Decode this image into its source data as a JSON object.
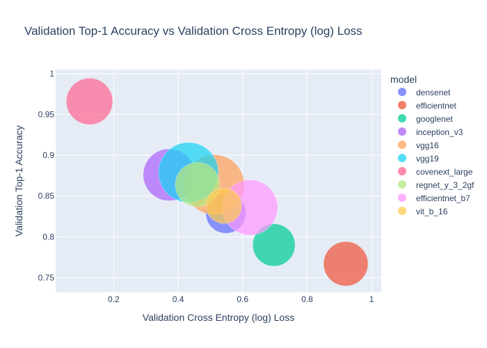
{
  "chart_data": {
    "type": "scatter",
    "title": "Validation Top-1 Accuracy vs Validation Cross Entropy (log) Loss",
    "xlabel": "Validation Cross Entropy (log) Loss",
    "ylabel": "Validation Top-1 Accuracy",
    "xlim": [
      0.02,
      1.03
    ],
    "ylim": [
      0.732,
      1.005
    ],
    "xticks": [
      "0.2",
      "0.4",
      "0.6",
      "0.8",
      "1"
    ],
    "yticks": [
      "0.75",
      "0.8",
      "0.85",
      "0.9",
      "0.95",
      "1"
    ],
    "grid": true,
    "legend": {
      "title": "model",
      "placement": "right"
    },
    "background": "#e5ecf6",
    "series": [
      {
        "name": "densenet",
        "color": "#636efa",
        "points": [
          {
            "x": 0.548,
            "y": 0.829,
            "size": 0.45
          }
        ]
      },
      {
        "name": "efficientnet",
        "color": "#ef553b",
        "points": [
          {
            "x": 0.92,
            "y": 0.767,
            "size": 0.55
          }
        ]
      },
      {
        "name": "googlenet",
        "color": "#00cc96",
        "points": [
          {
            "x": 0.697,
            "y": 0.79,
            "size": 0.5
          }
        ]
      },
      {
        "name": "inception_v3",
        "color": "#ab63fa",
        "points": [
          {
            "x": 0.372,
            "y": 0.876,
            "size": 0.75
          }
        ]
      },
      {
        "name": "vgg16",
        "color": "#ffa15a",
        "points": [
          {
            "x": 0.512,
            "y": 0.864,
            "size": 1.0
          }
        ]
      },
      {
        "name": "vgg19",
        "color": "#19d3f3",
        "points": [
          {
            "x": 0.432,
            "y": 0.879,
            "size": 1.0
          }
        ]
      },
      {
        "name": "covenext_large",
        "color": "#ff6692",
        "points": [
          {
            "x": 0.125,
            "y": 0.966,
            "size": 0.6
          }
        ]
      },
      {
        "name": "regnet_y_3_2gf",
        "color": "#b6e880",
        "points": [
          {
            "x": 0.46,
            "y": 0.864,
            "size": 0.55
          }
        ]
      },
      {
        "name": "efficientnet_b7",
        "color": "#ff97ff",
        "points": [
          {
            "x": 0.623,
            "y": 0.836,
            "size": 0.85
          }
        ]
      },
      {
        "name": "vit_b_16",
        "color": "#fecb52",
        "points": [
          {
            "x": 0.542,
            "y": 0.838,
            "size": 0.35
          }
        ]
      }
    ]
  }
}
